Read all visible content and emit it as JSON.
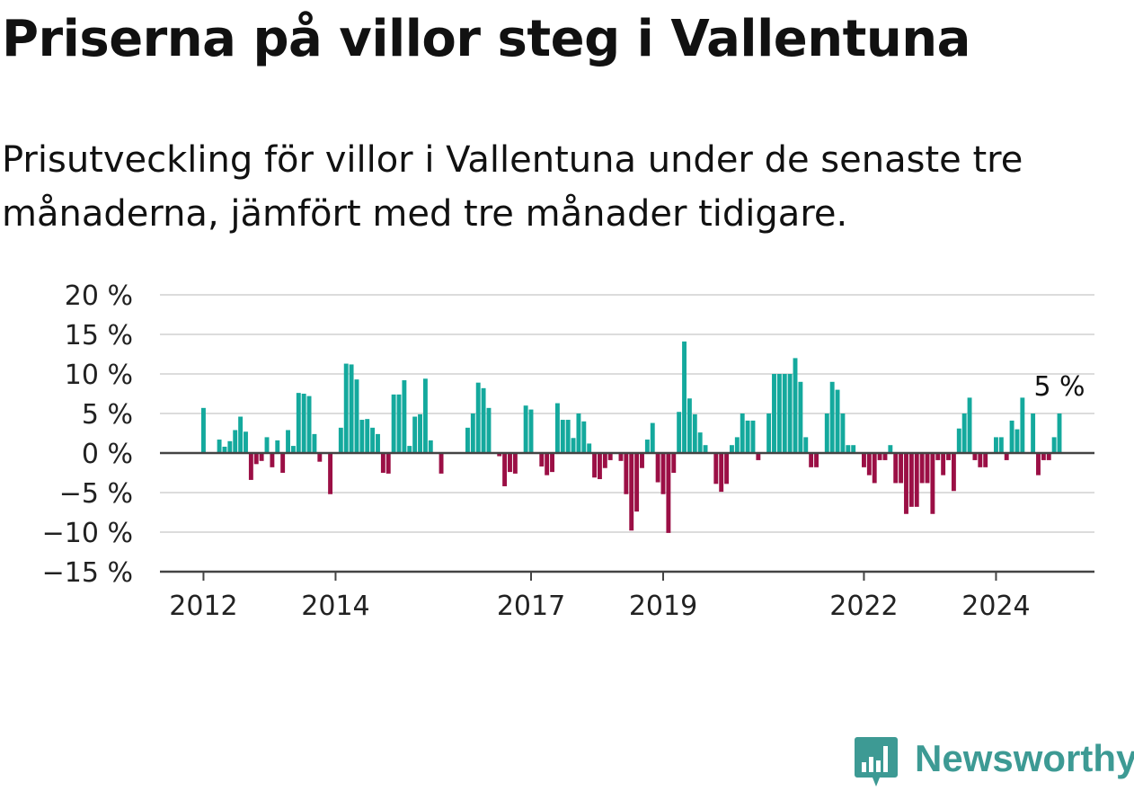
{
  "title": "Priserna på villor steg i Vallentuna",
  "subtitle": "Prisutveckling för villor i Vallentuna under de senaste tre månaderna, jämfört med tre månader tidigare.",
  "brand": {
    "name": "Newsworthy",
    "icon": "newsworthy-logo-icon",
    "color": "#3d9a94"
  },
  "chart_data": {
    "type": "bar",
    "y_unit": "%",
    "ylim": [
      -15,
      20
    ],
    "yticks": [
      20,
      15,
      10,
      5,
      0,
      -5,
      -10,
      -15
    ],
    "ytick_labels": [
      "20 %",
      "15 %",
      "10 %",
      "5 %",
      "0 %",
      "−5 %",
      "−10 %",
      "−15 %"
    ],
    "xtick_labels": [
      "2012",
      "2014",
      "2017",
      "2019",
      "2022",
      "2024"
    ],
    "xtick_indices": [
      0,
      25,
      62,
      87,
      125,
      150
    ],
    "start_label": "2012",
    "grid": true,
    "positive_color": "#14a99d",
    "negative_color": "#9b0f45",
    "last_value_label": "5 %",
    "values": [
      5.7,
      0,
      0,
      1.7,
      0.8,
      1.5,
      2.9,
      4.6,
      2.7,
      -3.4,
      -1.4,
      -1.0,
      2.0,
      -1.8,
      1.6,
      -2.5,
      2.9,
      0.9,
      7.6,
      7.5,
      7.2,
      2.4,
      -1.1,
      0,
      -5.2,
      0,
      3.2,
      11.3,
      11.2,
      9.3,
      4.2,
      4.3,
      3.2,
      2.4,
      -2.5,
      -2.6,
      7.4,
      7.4,
      9.2,
      0.9,
      4.6,
      4.9,
      9.4,
      1.6,
      0,
      -2.6,
      0,
      0,
      0,
      0,
      3.2,
      5.0,
      8.9,
      8.2,
      5.7,
      0,
      -0.4,
      -4.2,
      -2.4,
      -2.6,
      0,
      6.0,
      5.5,
      0,
      -1.7,
      -2.8,
      -2.4,
      6.3,
      4.2,
      4.2,
      1.9,
      5.0,
      4.0,
      1.2,
      -3.1,
      -3.3,
      -1.9,
      -0.9,
      0,
      -1.0,
      -5.2,
      -9.8,
      -7.4,
      -1.9,
      1.7,
      3.8,
      -3.7,
      -5.2,
      -10.1,
      -2.5,
      5.2,
      14.1,
      6.9,
      4.9,
      2.6,
      1.0,
      0,
      -3.9,
      -4.9,
      -3.9,
      1.0,
      2.0,
      5.0,
      4.1,
      4.1,
      -0.9,
      0,
      5.0,
      10.0,
      10.0,
      10.0,
      10.0,
      12.0,
      9.0,
      2.0,
      -1.8,
      -1.8,
      0,
      5.0,
      9.0,
      8.0,
      5.0,
      1.0,
      1.0,
      0,
      -1.8,
      -2.8,
      -3.8,
      -0.9,
      -0.9,
      1.0,
      -3.8,
      -3.8,
      -7.7,
      -6.8,
      -6.8,
      -3.8,
      -3.8,
      -7.7,
      -0.9,
      -2.8,
      -0.9,
      -4.8,
      3.1,
      5.0,
      7.0,
      -0.9,
      -1.8,
      -1.8,
      0,
      2.0,
      2.0,
      -0.9,
      4.1,
      3.0,
      7.0,
      0,
      5.0,
      -2.8,
      -0.9,
      -0.9,
      2.0,
      5.0
    ]
  }
}
